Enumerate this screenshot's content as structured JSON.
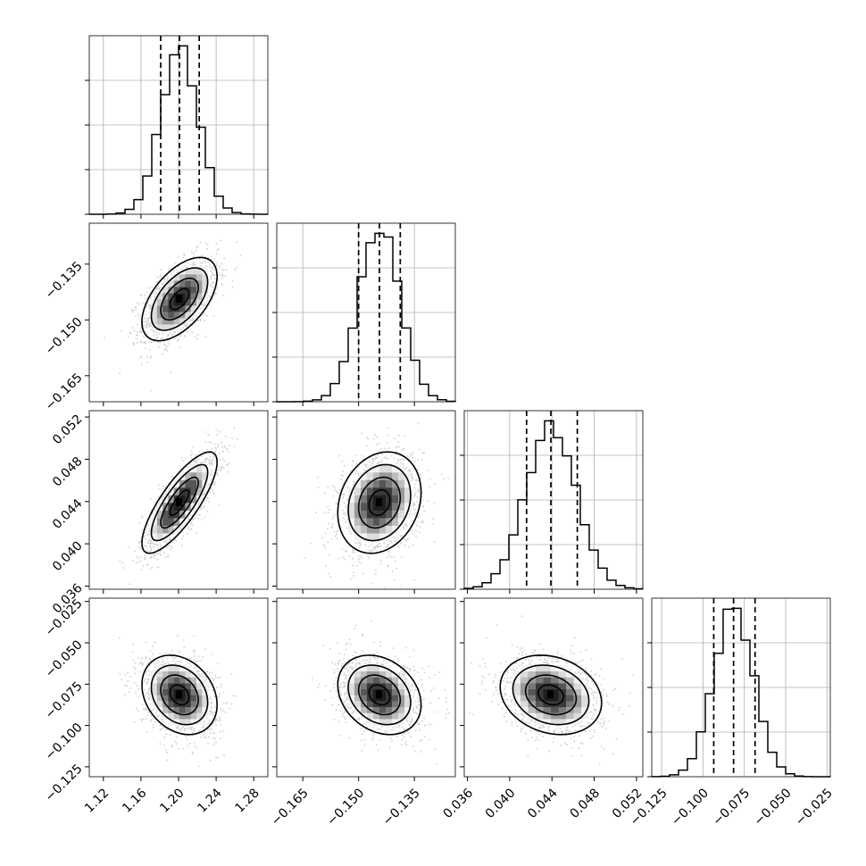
{
  "chart_data": {
    "type": "corner",
    "grid": true,
    "variables": [
      {
        "range": [
          1.105,
          1.295
        ],
        "ticks": [
          1.12,
          1.16,
          1.2,
          1.24,
          1.28
        ],
        "tick_labels": [
          "1.12",
          "1.16",
          "1.20",
          "1.24",
          "1.28"
        ],
        "quantiles": [
          1.181,
          1.201,
          1.222
        ],
        "median": 1.201,
        "sigma": 0.02
      },
      {
        "range": [
          -0.172,
          -0.124
        ],
        "ticks": [
          -0.165,
          -0.15,
          -0.135
        ],
        "tick_labels": [
          "−0.165",
          "−0.150",
          "−0.135"
        ],
        "quantiles": [
          -0.15,
          -0.1444,
          -0.1388
        ],
        "median": -0.1444,
        "sigma": 0.0056
      },
      {
        "range": [
          0.0357,
          0.0526
        ],
        "ticks": [
          0.036,
          0.04,
          0.044,
          0.048,
          0.052
        ],
        "tick_labels": [
          "0.036",
          "0.040",
          "0.044",
          "0.048",
          "0.052"
        ],
        "quantiles": [
          0.0416,
          0.0439,
          0.0464
        ],
        "median": 0.0439,
        "sigma": 0.0024
      },
      {
        "range": [
          -0.131,
          -0.023
        ],
        "ticks": [
          -0.125,
          -0.1,
          -0.075,
          -0.05,
          -0.025
        ],
        "tick_labels": [
          "−0.125",
          "−0.100",
          "−0.075",
          "−0.050",
          "−0.025"
        ],
        "quantiles": [
          -0.0935,
          -0.0815,
          -0.0685
        ],
        "median": -0.0815,
        "sigma": 0.012
      }
    ],
    "correlations": [
      [
        1.0,
        0.55,
        0.8,
        -0.25
      ],
      [
        0.55,
        1.0,
        0.2,
        -0.25
      ],
      [
        0.8,
        0.2,
        1.0,
        -0.2
      ],
      [
        -0.25,
        -0.25,
        -0.2,
        1.0
      ]
    ],
    "contour_levels_sigma": [
      0.5,
      1.0,
      1.5,
      2.0
    ],
    "histogram_bins": 20
  }
}
